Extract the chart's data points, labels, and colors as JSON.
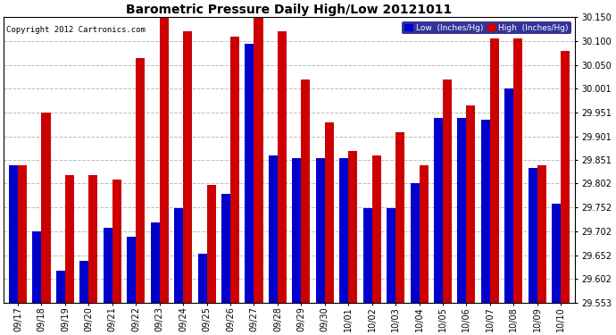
{
  "title": "Barometric Pressure Daily High/Low 20121011",
  "copyright": "Copyright 2012 Cartronics.com",
  "legend_low": "Low  (Inches/Hg)",
  "legend_high": "High  (Inches/Hg)",
  "low_color": "#0000cc",
  "high_color": "#cc0000",
  "background_color": "#ffffff",
  "plot_bg_color": "#ffffff",
  "ylim_min": 29.553,
  "ylim_max": 30.15,
  "yticks": [
    29.553,
    29.602,
    29.652,
    29.702,
    29.752,
    29.802,
    29.851,
    29.901,
    29.951,
    30.001,
    30.05,
    30.1,
    30.15
  ],
  "dates": [
    "09/17",
    "09/18",
    "09/19",
    "09/20",
    "09/21",
    "09/22",
    "09/23",
    "09/24",
    "09/25",
    "09/26",
    "09/27",
    "09/28",
    "09/29",
    "09/30",
    "10/01",
    "10/02",
    "10/03",
    "10/04",
    "10/05",
    "10/06",
    "10/07",
    "10/08",
    "10/09",
    "10/10"
  ],
  "low_values": [
    29.84,
    29.702,
    29.62,
    29.64,
    29.71,
    29.69,
    29.72,
    29.75,
    29.655,
    29.78,
    30.095,
    29.86,
    29.855,
    29.855,
    29.855,
    29.75,
    29.75,
    29.802,
    29.94,
    29.94,
    29.935,
    30.001,
    29.835,
    29.76
  ],
  "high_values": [
    29.84,
    29.95,
    29.82,
    29.82,
    29.81,
    30.065,
    30.15,
    30.12,
    29.8,
    30.11,
    30.15,
    30.12,
    30.02,
    29.93,
    29.87,
    29.86,
    29.91,
    29.84,
    30.02,
    29.965,
    30.105,
    30.105,
    29.84,
    30.08
  ],
  "bar_width": 0.38,
  "title_fontsize": 10,
  "tick_fontsize": 7,
  "figwidth": 6.9,
  "figheight": 3.75,
  "dpi": 100
}
